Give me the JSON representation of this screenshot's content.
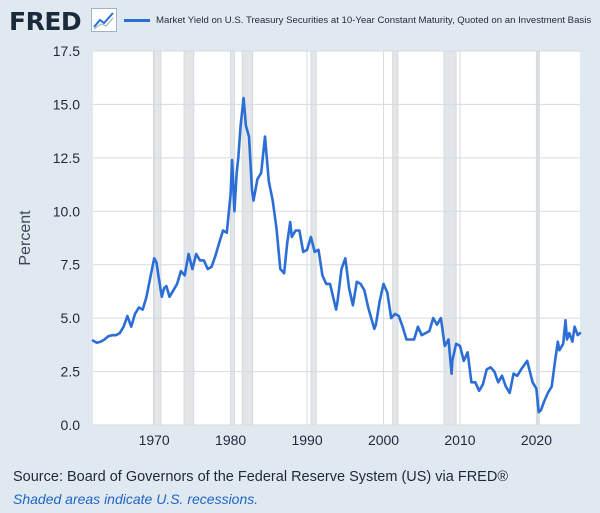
{
  "header": {
    "logo": "FRED",
    "logo_icon": "line-chart-icon",
    "legend_label": "Market Yield on U.S. Treasury Securities at 10-Year Constant Maturity, Quoted on an Investment Basis"
  },
  "footer": {
    "source": "Source: Board of Governors of the Federal Reserve System (US) via FRED®",
    "note": "Shaded areas indicate U.S. recessions."
  },
  "colors": {
    "line": "#2b6ed6",
    "background": "#e1e9f0",
    "plot_background": "#ffffff",
    "recession": "#e3e6e9",
    "grid": "#d5dbe1"
  },
  "chart_data": {
    "type": "line",
    "title": "",
    "xlabel": "",
    "ylabel": "Percent",
    "xlim": [
      1962.0,
      2025.7
    ],
    "ylim": [
      0,
      17.5
    ],
    "yticks": [
      "0.0",
      "2.5",
      "5.0",
      "7.5",
      "10.0",
      "12.5",
      "15.0",
      "17.5"
    ],
    "xticks": [
      "1970",
      "1980",
      "1990",
      "2000",
      "2010",
      "2020"
    ],
    "grid": true,
    "legend": "top",
    "recessions": [
      [
        1969.9,
        1970.9
      ],
      [
        1973.9,
        1975.2
      ],
      [
        1980.0,
        1980.5
      ],
      [
        1981.5,
        1982.9
      ],
      [
        1990.5,
        1991.2
      ],
      [
        2001.2,
        2001.9
      ],
      [
        2007.9,
        2009.5
      ],
      [
        2020.1,
        2020.4
      ]
    ],
    "series": [
      {
        "name": "Market Yield on U.S. Treasury Securities at 10-Year Constant Maturity, Quoted on an Investment Basis",
        "x": [
          1962.0,
          1962.5,
          1963.0,
          1963.5,
          1964.0,
          1964.5,
          1965.0,
          1965.5,
          1966.0,
          1966.5,
          1967.0,
          1967.5,
          1968.0,
          1968.5,
          1969.0,
          1969.5,
          1970.0,
          1970.3,
          1970.6,
          1971.0,
          1971.3,
          1971.6,
          1972.0,
          1972.5,
          1973.0,
          1973.5,
          1974.0,
          1974.5,
          1975.0,
          1975.5,
          1976.0,
          1976.5,
          1977.0,
          1977.5,
          1978.0,
          1978.5,
          1979.0,
          1979.5,
          1980.0,
          1980.2,
          1980.5,
          1980.8,
          1981.0,
          1981.3,
          1981.7,
          1982.0,
          1982.4,
          1982.8,
          1983.0,
          1983.5,
          1984.0,
          1984.5,
          1985.0,
          1985.5,
          1986.0,
          1986.5,
          1987.0,
          1987.4,
          1987.8,
          1988.0,
          1988.5,
          1989.0,
          1989.5,
          1990.0,
          1990.5,
          1991.0,
          1991.5,
          1992.0,
          1992.5,
          1993.0,
          1993.8,
          1994.0,
          1994.5,
          1995.0,
          1995.5,
          1996.0,
          1996.5,
          1997.0,
          1997.5,
          1998.0,
          1998.8,
          1999.0,
          1999.5,
          2000.0,
          2000.5,
          2001.0,
          2001.5,
          2002.0,
          2002.5,
          2003.0,
          2003.5,
          2004.0,
          2004.5,
          2005.0,
          2005.5,
          2006.0,
          2006.5,
          2007.0,
          2007.5,
          2008.0,
          2008.5,
          2008.9,
          2009.0,
          2009.5,
          2010.0,
          2010.5,
          2011.0,
          2011.5,
          2012.0,
          2012.5,
          2013.0,
          2013.5,
          2014.0,
          2014.5,
          2015.0,
          2015.5,
          2016.0,
          2016.5,
          2017.0,
          2017.5,
          2018.0,
          2018.8,
          2019.0,
          2019.5,
          2020.0,
          2020.3,
          2020.6,
          2021.0,
          2021.5,
          2022.0,
          2022.4,
          2022.8,
          2023.0,
          2023.5,
          2023.8,
          2024.0,
          2024.3,
          2024.7,
          2025.0,
          2025.4,
          2025.7
        ],
        "values": [
          3.95,
          3.85,
          3.9,
          4.0,
          4.15,
          4.2,
          4.2,
          4.3,
          4.6,
          5.1,
          4.6,
          5.2,
          5.5,
          5.4,
          6.0,
          6.9,
          7.8,
          7.6,
          6.9,
          6.0,
          6.4,
          6.5,
          6.0,
          6.3,
          6.6,
          7.2,
          7.0,
          8.0,
          7.3,
          8.0,
          7.7,
          7.7,
          7.3,
          7.4,
          7.9,
          8.5,
          9.1,
          9.0,
          10.8,
          12.4,
          10.0,
          11.8,
          12.5,
          14.0,
          15.3,
          14.0,
          13.5,
          11.0,
          10.5,
          11.5,
          11.8,
          13.5,
          11.4,
          10.5,
          9.2,
          7.3,
          7.1,
          8.5,
          9.5,
          8.8,
          9.1,
          9.1,
          8.1,
          8.2,
          8.8,
          8.1,
          8.2,
          7.0,
          6.6,
          6.6,
          5.4,
          5.8,
          7.3,
          7.8,
          6.4,
          5.6,
          6.7,
          6.6,
          6.3,
          5.5,
          4.5,
          4.7,
          5.8,
          6.6,
          6.2,
          5.0,
          5.2,
          5.1,
          4.6,
          4.0,
          4.0,
          4.0,
          4.6,
          4.2,
          4.3,
          4.4,
          5.0,
          4.7,
          5.0,
          3.7,
          4.0,
          2.4,
          3.0,
          3.8,
          3.7,
          3.0,
          3.4,
          2.0,
          2.0,
          1.6,
          1.9,
          2.6,
          2.7,
          2.5,
          2.0,
          2.3,
          1.8,
          1.5,
          2.4,
          2.3,
          2.6,
          3.0,
          2.7,
          2.0,
          1.7,
          0.6,
          0.7,
          1.1,
          1.5,
          1.8,
          2.9,
          3.9,
          3.5,
          3.8,
          4.9,
          4.0,
          4.3,
          3.9,
          4.6,
          4.2,
          4.3
        ]
      }
    ]
  }
}
